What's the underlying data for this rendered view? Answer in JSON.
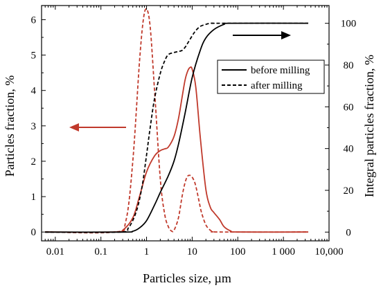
{
  "chart_data": {
    "type": "line",
    "xscale": "log",
    "xlim": [
      0.005,
      10000
    ],
    "ylim_left": [
      -0.25,
      6.4
    ],
    "ylim_right": [
      -4.2,
      108.5
    ],
    "xlabel": "Particles size, µm",
    "ylabel_left": "Particles fraction, %",
    "ylabel_right": "Integral particles fraction, %",
    "x_ticks": [
      {
        "value": 0.01,
        "label": "0.01"
      },
      {
        "value": 0.1,
        "label": "0.1"
      },
      {
        "value": 1,
        "label": "1"
      },
      {
        "value": 10,
        "label": "10"
      },
      {
        "value": 100,
        "label": "100"
      },
      {
        "value": 1000,
        "label": "1 000"
      },
      {
        "value": 10000,
        "label": "10,000"
      }
    ],
    "y_left_ticks": [
      "0",
      "1",
      "2",
      "3",
      "4",
      "5",
      "6"
    ],
    "y_right_ticks": [
      "0",
      "20",
      "40",
      "60",
      "80",
      "100"
    ],
    "grid": false,
    "legend_position": "center-right",
    "legend": [
      {
        "label": "before milling",
        "style": "solid"
      },
      {
        "label": "after milling",
        "style": "dashed"
      }
    ],
    "series": [
      {
        "axis": "left",
        "style": "solid",
        "color": "#c0392b",
        "x": [
          0.006,
          0.2,
          0.3,
          0.5,
          0.7,
          1,
          1.5,
          2,
          2.5,
          3,
          4,
          5,
          6,
          7,
          8,
          9,
          10,
          12,
          15,
          20,
          25,
          30,
          40,
          50,
          70,
          100,
          3500
        ],
        "y": [
          0.0,
          0.0,
          0.05,
          0.4,
          1.0,
          1.7,
          2.15,
          2.3,
          2.35,
          2.4,
          2.7,
          3.2,
          3.8,
          4.3,
          4.55,
          4.65,
          4.6,
          4.1,
          2.7,
          1.2,
          0.7,
          0.55,
          0.35,
          0.15,
          0.03,
          0.0,
          0.0
        ]
      },
      {
        "axis": "left",
        "style": "dashed",
        "color": "#c0392b",
        "x": [
          0.006,
          0.2,
          0.35,
          0.5,
          0.7,
          0.85,
          1,
          1.2,
          1.5,
          2,
          2.5,
          3,
          3.5,
          4,
          5,
          6,
          7,
          8,
          9,
          10,
          11,
          12,
          14,
          16,
          20,
          25,
          30,
          40,
          3500
        ],
        "y": [
          0.0,
          0.0,
          0.3,
          2.0,
          4.8,
          6.0,
          6.3,
          5.8,
          4.0,
          1.5,
          0.5,
          0.15,
          0.03,
          0.05,
          0.4,
          1.0,
          1.4,
          1.58,
          1.6,
          1.55,
          1.45,
          1.3,
          0.9,
          0.55,
          0.2,
          0.05,
          0.01,
          0.0,
          0.0
        ]
      },
      {
        "axis": "right",
        "style": "solid",
        "color": "#000000",
        "x": [
          0.006,
          0.3,
          0.5,
          0.7,
          1,
          1.5,
          2,
          3,
          4,
          5,
          7,
          10,
          15,
          20,
          30,
          50,
          70,
          3500
        ],
        "y": [
          0.0,
          0.0,
          0.4,
          2.0,
          5.5,
          13,
          19,
          27,
          34,
          42,
          57,
          74,
          87,
          93,
          97,
          99.5,
          100,
          100
        ]
      },
      {
        "axis": "right",
        "style": "dashed",
        "color": "#000000",
        "x": [
          0.006,
          0.25,
          0.4,
          0.6,
          0.8,
          1,
          1.2,
          1.5,
          2,
          2.5,
          3,
          4,
          5,
          6,
          7,
          8,
          10,
          12,
          15,
          20,
          25,
          30,
          40,
          3500
        ],
        "y": [
          0.0,
          0.0,
          2.0,
          10,
          22,
          37,
          50,
          64,
          76,
          82,
          85,
          86,
          86.5,
          87,
          88.5,
          90.5,
          94,
          96.5,
          98.5,
          99.5,
          100,
          100,
          100,
          100
        ]
      }
    ],
    "annotations": [
      {
        "type": "arrow",
        "direction": "left",
        "color": "#c0392b",
        "meaning": "left axis"
      },
      {
        "type": "arrow",
        "direction": "right",
        "color": "#000000",
        "meaning": "right axis"
      }
    ]
  }
}
